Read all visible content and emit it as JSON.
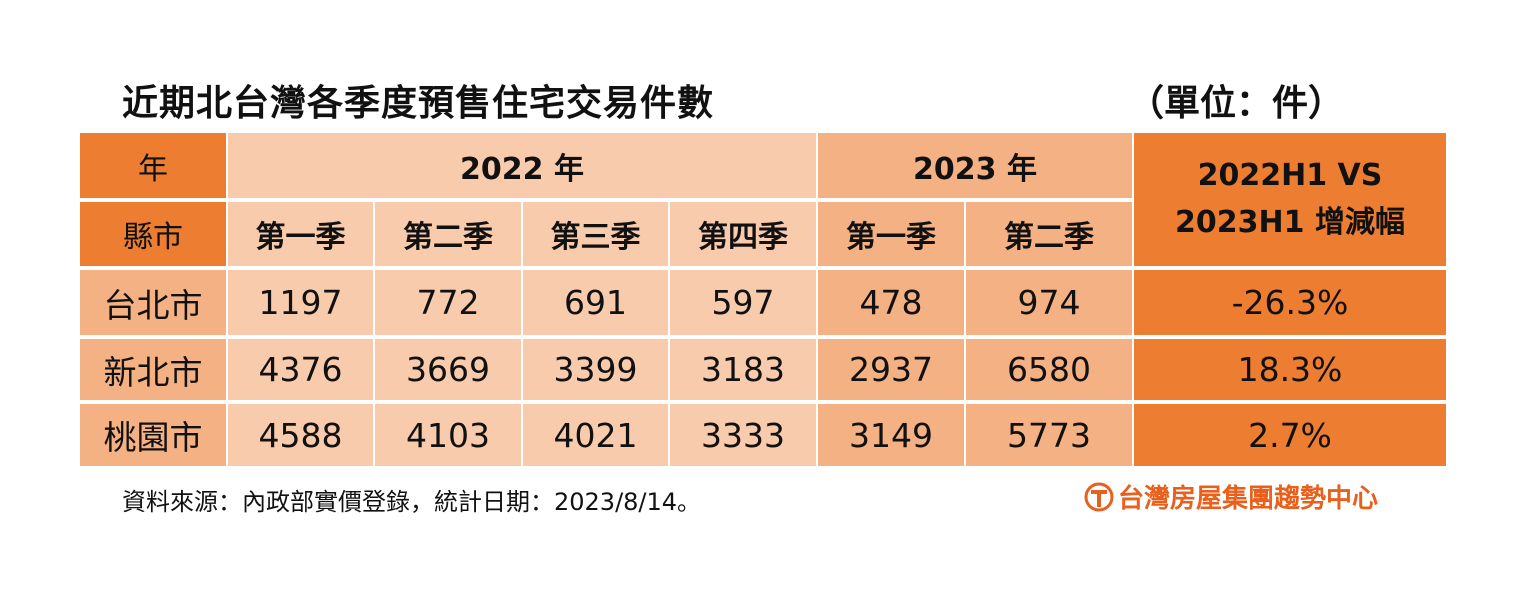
{
  "header": {
    "title": "近期北台灣各季度預售住宅交易件數",
    "unit": "（單位：件）"
  },
  "table": {
    "year_label": "年",
    "city_label": "縣市",
    "years": [
      "2022 年",
      "2023 年"
    ],
    "change_label": [
      "2022H1 VS",
      "2023H1 增減幅"
    ],
    "quarters": [
      "第一季",
      "第二季",
      "第三季",
      "第四季",
      "第一季",
      "第二季"
    ],
    "rows": [
      {
        "city": "台北市",
        "values": [
          1197,
          772,
          691,
          597,
          478,
          974
        ],
        "change": "-26.3%"
      },
      {
        "city": "新北市",
        "values": [
          4376,
          3669,
          3399,
          3183,
          2937,
          6580
        ],
        "change": "18.3%"
      },
      {
        "city": "桃園市",
        "values": [
          4588,
          4103,
          4021,
          3333,
          3149,
          5773
        ],
        "change": "2.7%"
      }
    ]
  },
  "footer": {
    "source": "資料來源：內政部實價登錄，統計日期：2023/8/14。",
    "logo": "台灣房屋集團趨勢中心"
  }
}
